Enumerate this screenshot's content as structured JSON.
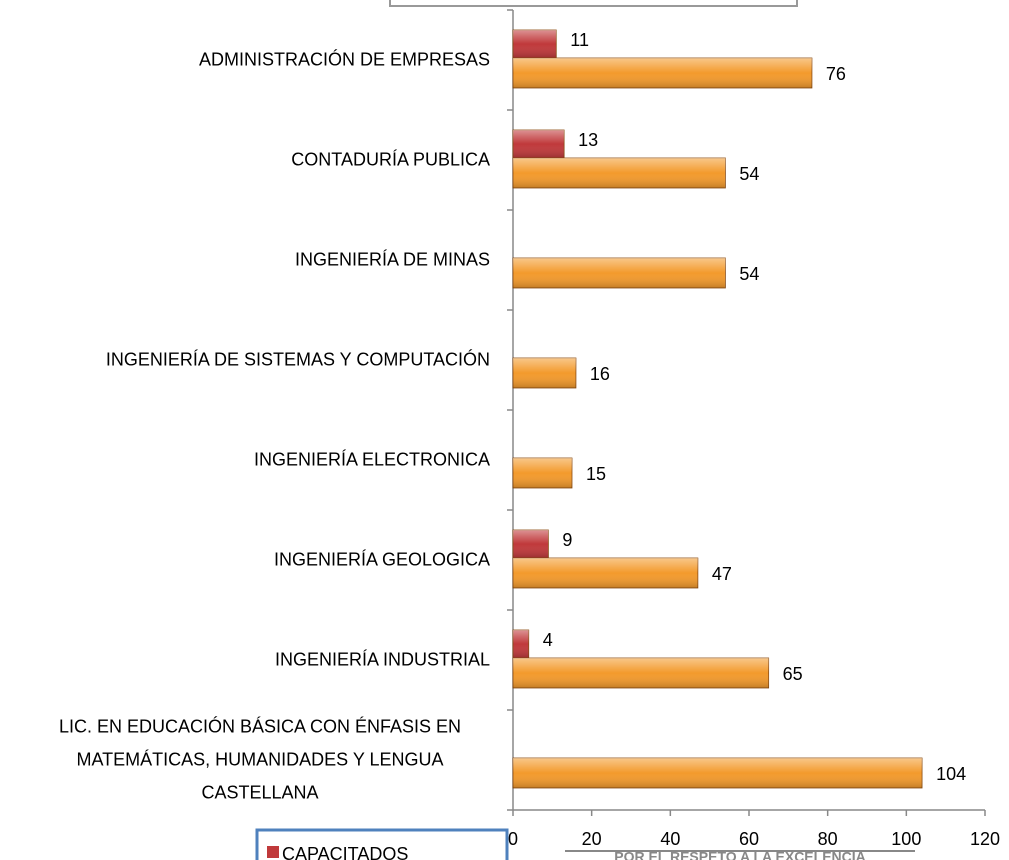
{
  "chart_data": {
    "type": "barh",
    "categories": [
      "ADMINISTRACIÓN DE EMPRESAS",
      "CONTADURÍA PUBLICA",
      "INGENIERÍA DE MINAS",
      "INGENIERÍA DE SISTEMAS Y COMPUTACIÓN",
      "INGENIERÍA ELECTRONICA",
      "INGENIERÍA GEOLOGICA",
      "INGENIERÍA INDUSTRIAL",
      "LIC. EN EDUCACIÓN BÁSICA CON ÉNFASIS EN MATEMÁTICAS, HUMANIDADES Y LENGUA CASTELLANA"
    ],
    "series": [
      {
        "name": "CAPACITADOS",
        "color": "#c0393b",
        "values": [
          11,
          13,
          null,
          null,
          null,
          9,
          4,
          null
        ]
      },
      {
        "color": "#f39a2c",
        "values": [
          76,
          54,
          54,
          16,
          15,
          47,
          65,
          104
        ]
      }
    ],
    "xlim": [
      0,
      120
    ],
    "xticks": [
      0,
      20,
      40,
      60,
      80,
      100,
      120
    ],
    "footer": "POR EL RESPETO A LA EXCELENCIA"
  }
}
